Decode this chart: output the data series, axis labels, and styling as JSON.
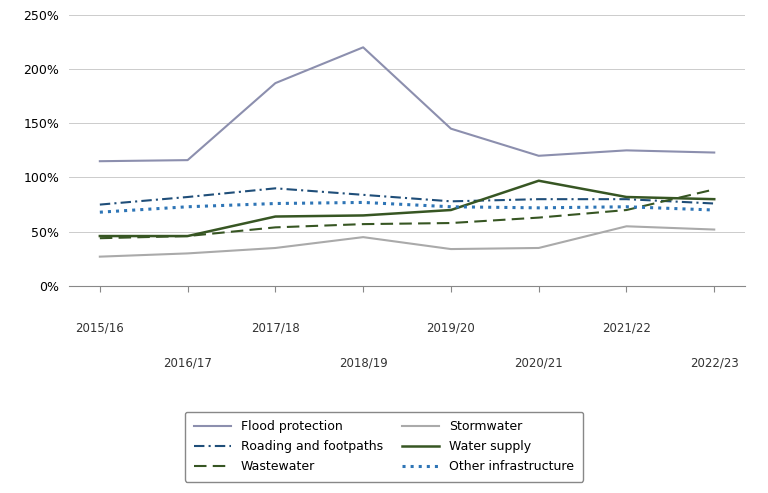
{
  "years": [
    "2015/16",
    "2016/17",
    "2017/18",
    "2018/19",
    "2019/20",
    "2020/21",
    "2021/22",
    "2022/23"
  ],
  "flood_protection": [
    1.15,
    1.16,
    1.87,
    2.2,
    1.45,
    1.2,
    1.25,
    1.23
  ],
  "roading_footpaths": [
    0.75,
    0.82,
    0.9,
    0.84,
    0.78,
    0.8,
    0.8,
    0.76
  ],
  "wastewater": [
    0.44,
    0.46,
    0.54,
    0.57,
    0.58,
    0.63,
    0.7,
    0.89
  ],
  "stormwater": [
    0.27,
    0.3,
    0.35,
    0.45,
    0.34,
    0.35,
    0.55,
    0.52
  ],
  "water_supply": [
    0.46,
    0.46,
    0.64,
    0.65,
    0.7,
    0.97,
    0.82,
    0.8
  ],
  "other_infrastructure": [
    0.68,
    0.73,
    0.76,
    0.77,
    0.73,
    0.72,
    0.73,
    0.7
  ],
  "colors": {
    "flood_protection": "#8c8fae",
    "roading_footpaths": "#1f4e79",
    "wastewater": "#375623",
    "stormwater": "#aaaaaa",
    "water_supply": "#375623",
    "other_infrastructure": "#2e75b6"
  },
  "ylim": [
    0,
    2.5
  ],
  "yticks": [
    0,
    0.5,
    1.0,
    1.5,
    2.0,
    2.5
  ],
  "ytick_labels": [
    "0%",
    "50%",
    "100%",
    "150%",
    "200%",
    "250%"
  ],
  "background_color": "#ffffff",
  "grid_color": "#cccccc"
}
